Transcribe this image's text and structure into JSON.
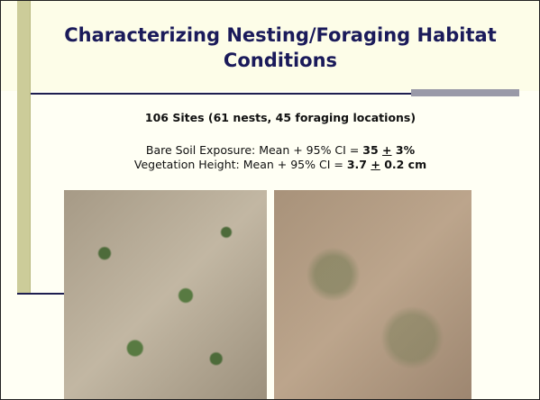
{
  "header": {
    "title": "Characterizing Nesting/Foraging Habitat Conditions"
  },
  "body": {
    "subtitle": "106 Sites (61 nests, 45 foraging locations)",
    "stats": [
      {
        "label": "Bare Soil Exposure: Mean + 95% CI =",
        "value": "35",
        "sign": "+",
        "error": "3%"
      },
      {
        "label": "Vegetation Height:  Mean + 95% CI =",
        "value": "3.7",
        "sign": "+",
        "error": "0.2 cm"
      }
    ]
  }
}
